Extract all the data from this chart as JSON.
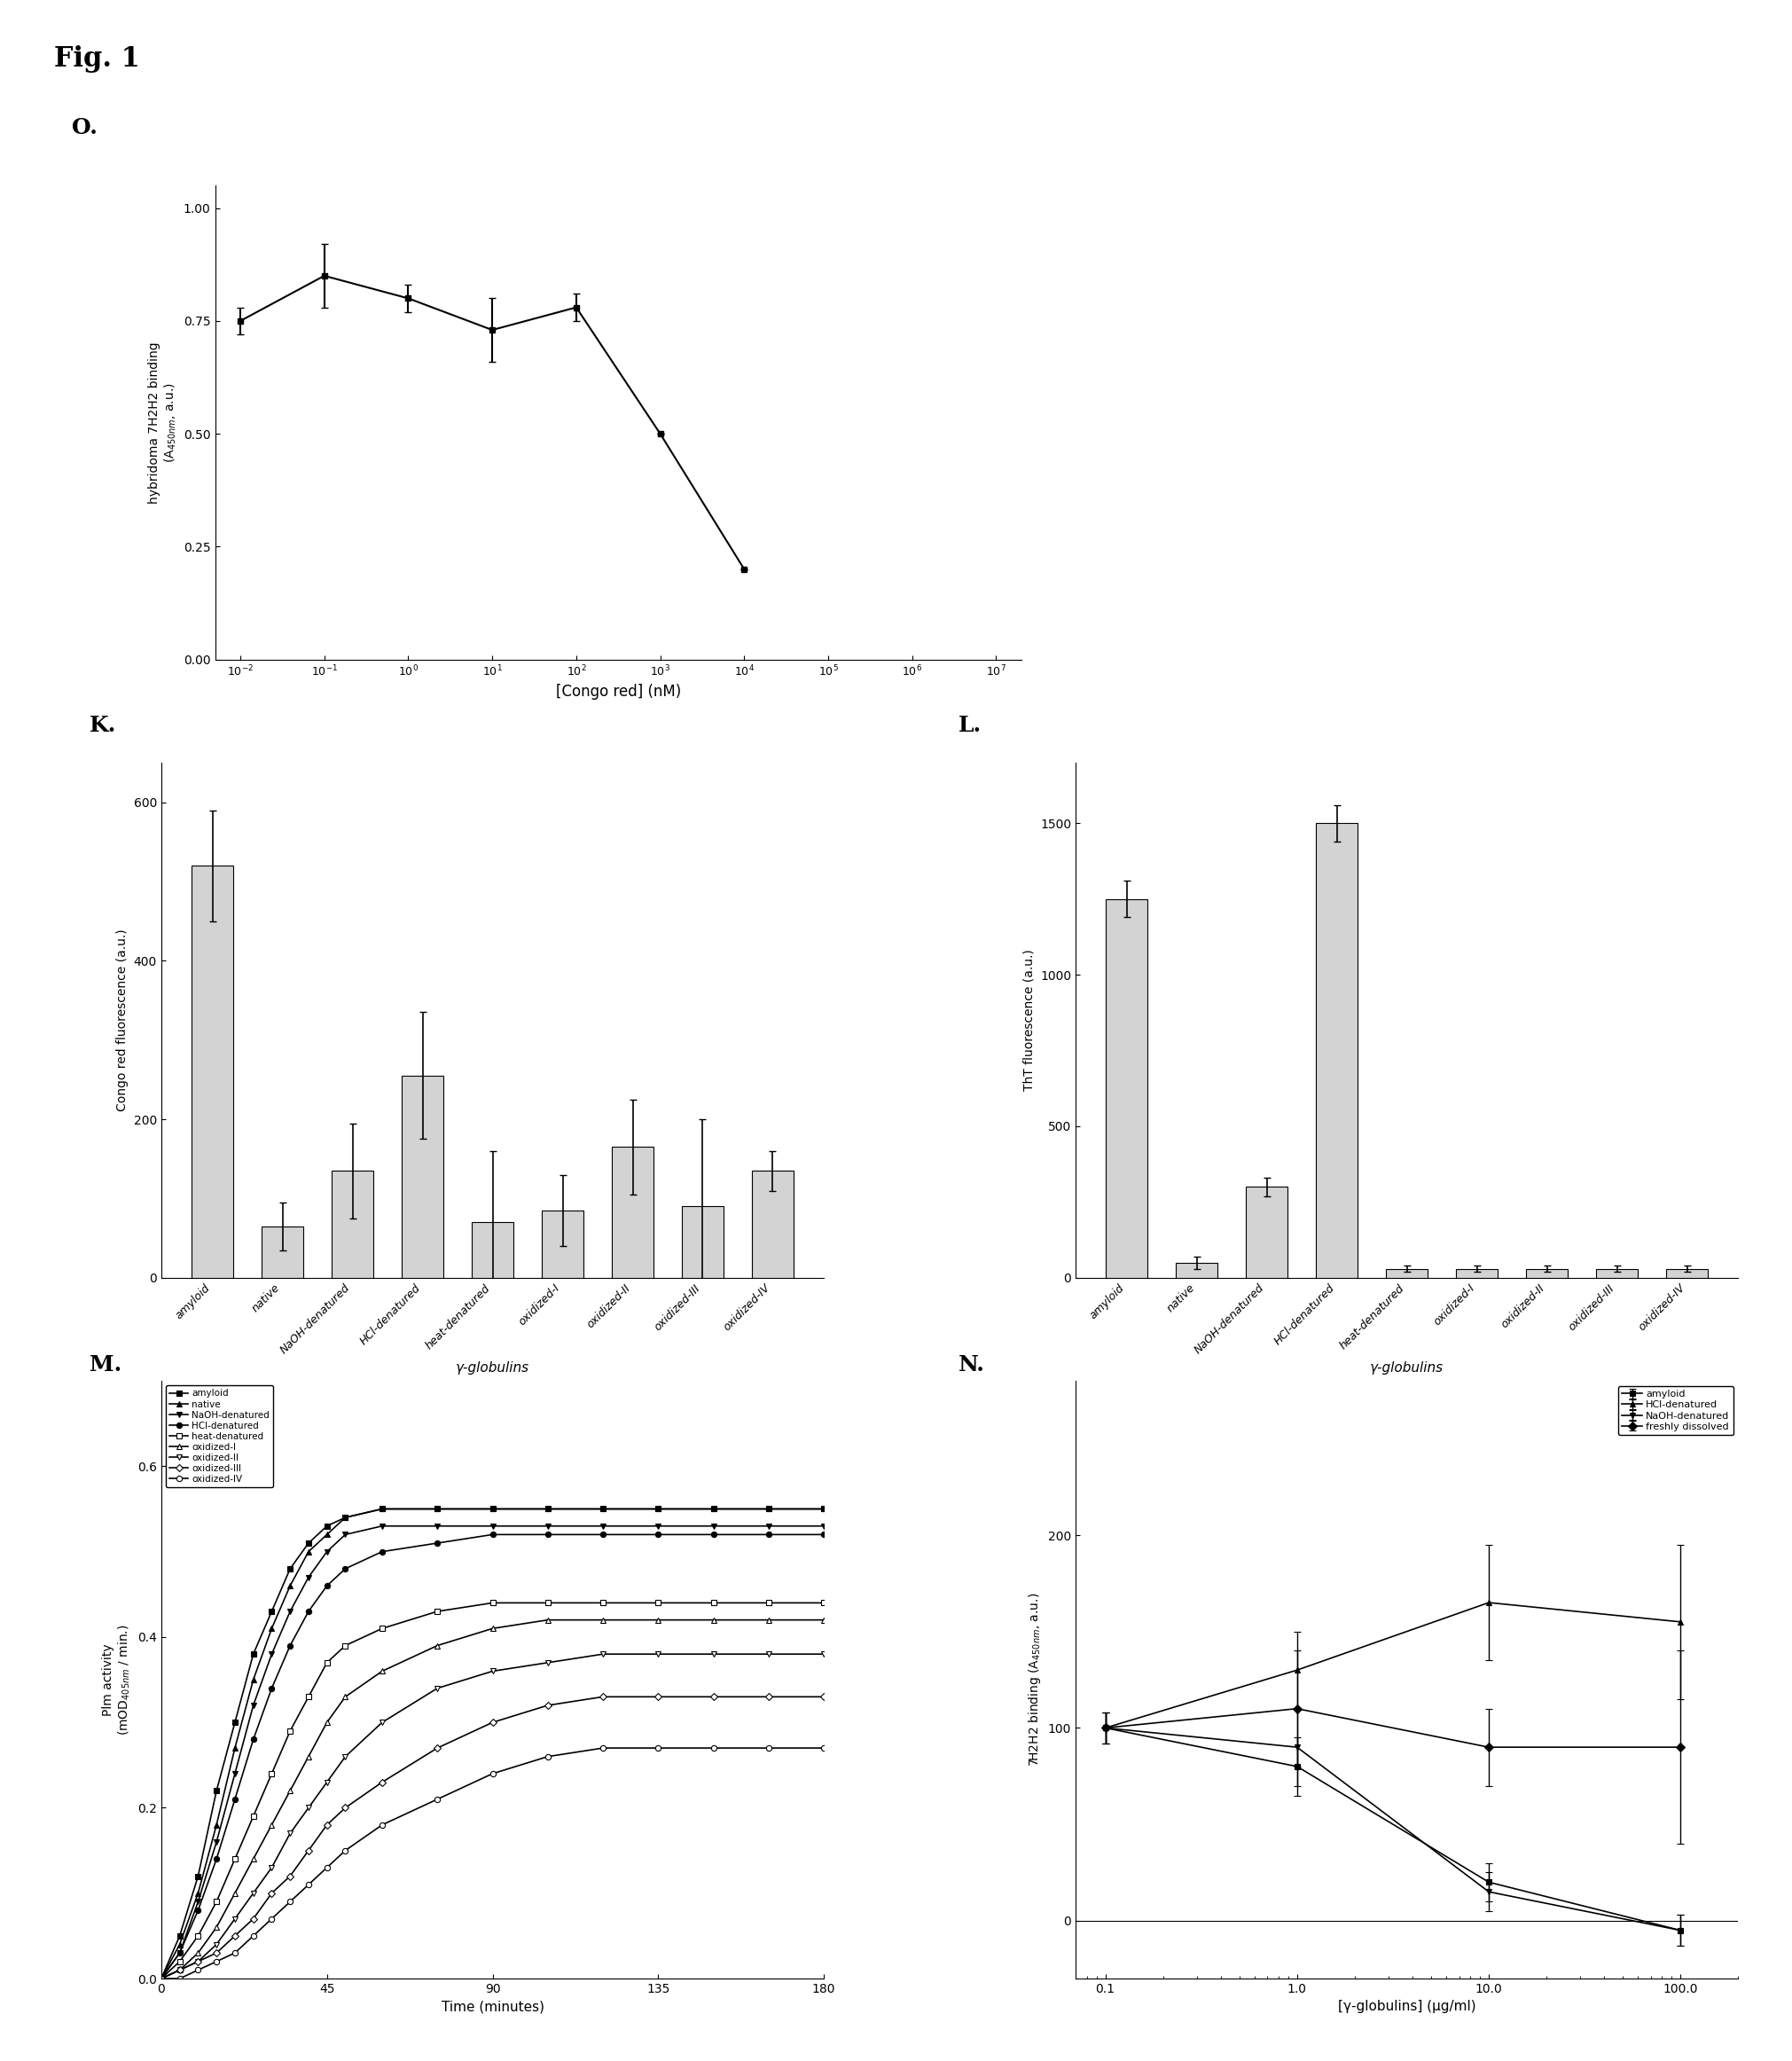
{
  "fig_label": "Fig. 1",
  "panel_O": {
    "label": "O.",
    "x": [
      0.01,
      0.1,
      1,
      10,
      100,
      1000,
      10000,
      100000,
      1000000
    ],
    "y": [
      0.75,
      0.85,
      0.8,
      0.73,
      0.78,
      0.5,
      0.2,
      null,
      null
    ],
    "yerr": [
      0.03,
      0.07,
      0.03,
      0.07,
      0.03,
      null,
      null,
      null,
      null
    ],
    "xlabel": "[Congo red] (nM)",
    "ylabel": "hybridoma 7H2H2 binding\n(A450nm, a.u.)",
    "yticks": [
      0.0,
      0.25,
      0.5,
      0.75,
      1.0
    ],
    "ylim": [
      0.0,
      1.05
    ],
    "xlim": [
      0.005,
      20000000.0
    ]
  },
  "panel_K": {
    "label": "K.",
    "categories": [
      "amyloid",
      "native",
      "NaOH-denatured",
      "HCl-denatured",
      "heat-denatured",
      "oxidized-I",
      "oxidized-II",
      "oxidized-III",
      "oxidized-IV"
    ],
    "values": [
      520,
      65,
      135,
      255,
      70,
      85,
      165,
      90,
      135
    ],
    "errors": [
      70,
      30,
      60,
      80,
      90,
      45,
      60,
      110,
      25
    ],
    "ylabel": "Congo red fluorescence (a.u.)",
    "xlabel": "γ-globulins",
    "ylim": [
      0,
      650
    ],
    "yticks": [
      0,
      200,
      400,
      600
    ]
  },
  "panel_L": {
    "label": "L.",
    "categories": [
      "amyloid",
      "native",
      "NaOH-denatured",
      "HCl-denatured",
      "heat-denatured",
      "oxidized-I",
      "oxidized-II",
      "oxidized-III",
      "oxidized-IV"
    ],
    "values": [
      1250,
      50,
      300,
      1500,
      30,
      30,
      30,
      30,
      30
    ],
    "errors": [
      60,
      20,
      30,
      60,
      10,
      10,
      10,
      10,
      10
    ],
    "ylabel": "ThT fluorescence (a.u.)",
    "xlabel": "γ-globulins",
    "ylim": [
      0,
      1700
    ],
    "yticks": [
      0,
      500,
      1000,
      1500
    ]
  },
  "panel_M": {
    "label": "M.",
    "xlabel": "Time (minutes)",
    "ylabel": "Plm activity\n(mOD405nm / min.)",
    "ylim": [
      0.0,
      0.7
    ],
    "yticks": [
      0.0,
      0.2,
      0.4,
      0.6
    ],
    "xlim": [
      0,
      180
    ],
    "xticks": [
      0,
      45,
      90,
      135,
      180
    ],
    "series": {
      "amyloid": {
        "x": [
          0,
          5,
          10,
          15,
          20,
          25,
          30,
          35,
          40,
          45,
          50,
          60,
          75,
          90,
          105,
          120,
          135,
          150,
          165,
          180
        ],
        "y": [
          0.0,
          0.05,
          0.12,
          0.22,
          0.3,
          0.38,
          0.43,
          0.48,
          0.51,
          0.53,
          0.54,
          0.55,
          0.55,
          0.55,
          0.55,
          0.55,
          0.55,
          0.55,
          0.55,
          0.55
        ],
        "marker": "s",
        "filled": true
      },
      "native": {
        "x": [
          0,
          5,
          10,
          15,
          20,
          25,
          30,
          35,
          40,
          45,
          50,
          60,
          75,
          90,
          105,
          120,
          135,
          150,
          165,
          180
        ],
        "y": [
          0.0,
          0.04,
          0.1,
          0.18,
          0.27,
          0.35,
          0.41,
          0.46,
          0.5,
          0.52,
          0.54,
          0.55,
          0.55,
          0.55,
          0.55,
          0.55,
          0.55,
          0.55,
          0.55,
          0.55
        ],
        "marker": "^",
        "filled": true
      },
      "NaOH-denatured": {
        "x": [
          0,
          5,
          10,
          15,
          20,
          25,
          30,
          35,
          40,
          45,
          50,
          60,
          75,
          90,
          105,
          120,
          135,
          150,
          165,
          180
        ],
        "y": [
          0.0,
          0.03,
          0.09,
          0.16,
          0.24,
          0.32,
          0.38,
          0.43,
          0.47,
          0.5,
          0.52,
          0.53,
          0.53,
          0.53,
          0.53,
          0.53,
          0.53,
          0.53,
          0.53,
          0.53
        ],
        "marker": "v",
        "filled": true
      },
      "HCl-denatured": {
        "x": [
          0,
          5,
          10,
          15,
          20,
          25,
          30,
          35,
          40,
          45,
          50,
          60,
          75,
          90,
          105,
          120,
          135,
          150,
          165,
          180
        ],
        "y": [
          0.0,
          0.03,
          0.08,
          0.14,
          0.21,
          0.28,
          0.34,
          0.39,
          0.43,
          0.46,
          0.48,
          0.5,
          0.51,
          0.52,
          0.52,
          0.52,
          0.52,
          0.52,
          0.52,
          0.52
        ],
        "marker": "o",
        "filled": true
      },
      "heat-denatured": {
        "x": [
          0,
          5,
          10,
          15,
          20,
          25,
          30,
          35,
          40,
          45,
          50,
          60,
          75,
          90,
          105,
          120,
          135,
          150,
          165,
          180
        ],
        "y": [
          0.0,
          0.02,
          0.05,
          0.09,
          0.14,
          0.19,
          0.24,
          0.29,
          0.33,
          0.37,
          0.39,
          0.41,
          0.43,
          0.44,
          0.44,
          0.44,
          0.44,
          0.44,
          0.44,
          0.44
        ],
        "marker": "s",
        "filled": false
      },
      "oxidized-I": {
        "x": [
          0,
          5,
          10,
          15,
          20,
          25,
          30,
          35,
          40,
          45,
          50,
          60,
          75,
          90,
          105,
          120,
          135,
          150,
          165,
          180
        ],
        "y": [
          0.0,
          0.01,
          0.03,
          0.06,
          0.1,
          0.14,
          0.18,
          0.22,
          0.26,
          0.3,
          0.33,
          0.36,
          0.39,
          0.41,
          0.42,
          0.42,
          0.42,
          0.42,
          0.42,
          0.42
        ],
        "marker": "^",
        "filled": false
      },
      "oxidized-II": {
        "x": [
          0,
          5,
          10,
          15,
          20,
          25,
          30,
          35,
          40,
          45,
          50,
          60,
          75,
          90,
          105,
          120,
          135,
          150,
          165,
          180
        ],
        "y": [
          0.0,
          0.01,
          0.02,
          0.04,
          0.07,
          0.1,
          0.13,
          0.17,
          0.2,
          0.23,
          0.26,
          0.3,
          0.34,
          0.36,
          0.37,
          0.38,
          0.38,
          0.38,
          0.38,
          0.38
        ],
        "marker": "v",
        "filled": false
      },
      "oxidized-III": {
        "x": [
          0,
          5,
          10,
          15,
          20,
          25,
          30,
          35,
          40,
          45,
          50,
          60,
          75,
          90,
          105,
          120,
          135,
          150,
          165,
          180
        ],
        "y": [
          0.0,
          0.01,
          0.02,
          0.03,
          0.05,
          0.07,
          0.1,
          0.12,
          0.15,
          0.18,
          0.2,
          0.23,
          0.27,
          0.3,
          0.32,
          0.33,
          0.33,
          0.33,
          0.33,
          0.33
        ],
        "marker": "D",
        "filled": false
      },
      "oxidized-IV": {
        "x": [
          0,
          5,
          10,
          15,
          20,
          25,
          30,
          35,
          40,
          45,
          50,
          60,
          75,
          90,
          105,
          120,
          135,
          150,
          165,
          180
        ],
        "y": [
          0.0,
          0.0,
          0.01,
          0.02,
          0.03,
          0.05,
          0.07,
          0.09,
          0.11,
          0.13,
          0.15,
          0.18,
          0.21,
          0.24,
          0.26,
          0.27,
          0.27,
          0.27,
          0.27,
          0.27
        ],
        "marker": "o",
        "filled": false
      }
    },
    "legend_order": [
      "amyloid",
      "native",
      "NaOH-denatured",
      "HCl-denatured",
      "heat-denatured",
      "oxidized-I",
      "oxidized-II",
      "oxidized-III",
      "oxidized-IV"
    ]
  },
  "panel_N": {
    "label": "N.",
    "xlabel": "[γ-globulins] (µg/ml)",
    "ylabel": "7H2H2 binding (A450nm, a.u.)",
    "ylim": [
      -30,
      280
    ],
    "yticks": [
      0,
      100,
      200
    ],
    "xlim": [
      0.07,
      200
    ],
    "xticks": [
      0.1,
      1,
      10,
      100
    ],
    "series": {
      "amyloid": {
        "x": [
          0.1,
          1,
          10,
          100
        ],
        "y": [
          100,
          80,
          20,
          -5
        ],
        "yerr": [
          8,
          15,
          10,
          8
        ],
        "marker": "s",
        "filled": true
      },
      "HCl-denatured": {
        "x": [
          0.1,
          1,
          10,
          100
        ],
        "y": [
          100,
          130,
          165,
          155
        ],
        "yerr": [
          8,
          20,
          30,
          40
        ],
        "marker": "^",
        "filled": true
      },
      "NaOH-denatured": {
        "x": [
          0.1,
          1,
          10,
          100
        ],
        "y": [
          100,
          90,
          15,
          -5
        ],
        "yerr": [
          8,
          20,
          10,
          8
        ],
        "marker": "v",
        "filled": true
      },
      "freshly dissolved": {
        "x": [
          0.1,
          1,
          10,
          100
        ],
        "y": [
          100,
          110,
          90,
          90
        ],
        "yerr": [
          8,
          30,
          20,
          50
        ],
        "marker": "D",
        "filled": true
      }
    },
    "legend_order": [
      "amyloid",
      "HCl-denatured",
      "NaOH-denatured",
      "freshly dissolved"
    ]
  }
}
